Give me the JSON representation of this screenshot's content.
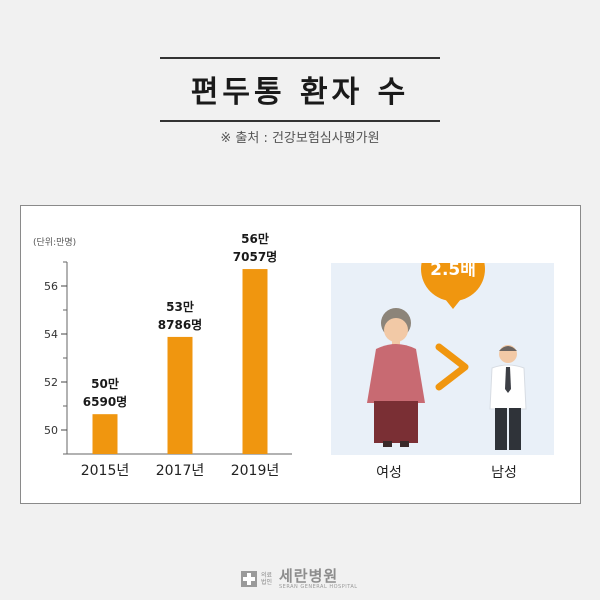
{
  "title": "편두통 환자 수",
  "source": "※ 출처 : 건강보험심사평가원",
  "chart_data": {
    "type": "bar",
    "unit_label": "(단위:만명)",
    "categories": [
      "2015년",
      "2017년",
      "2019년"
    ],
    "values": [
      50.659,
      53.8786,
      56.7057
    ],
    "data_labels": [
      [
        "50만",
        "6590명"
      ],
      [
        "53만",
        "8786명"
      ],
      [
        "56만",
        "7057명"
      ]
    ],
    "yticks": [
      50,
      52,
      54,
      56
    ],
    "ylim": [
      49,
      57
    ],
    "bar_color": "#f0960f"
  },
  "comparison": {
    "ratio_label": "2.5배",
    "female_label": "여성",
    "male_label": "남성",
    "bubble_color": "#f0960f"
  },
  "footer": {
    "logo_small": "의료법인",
    "logo_name": "세란병원",
    "logo_en": "SERAN GENERAL HOSPITAL"
  }
}
